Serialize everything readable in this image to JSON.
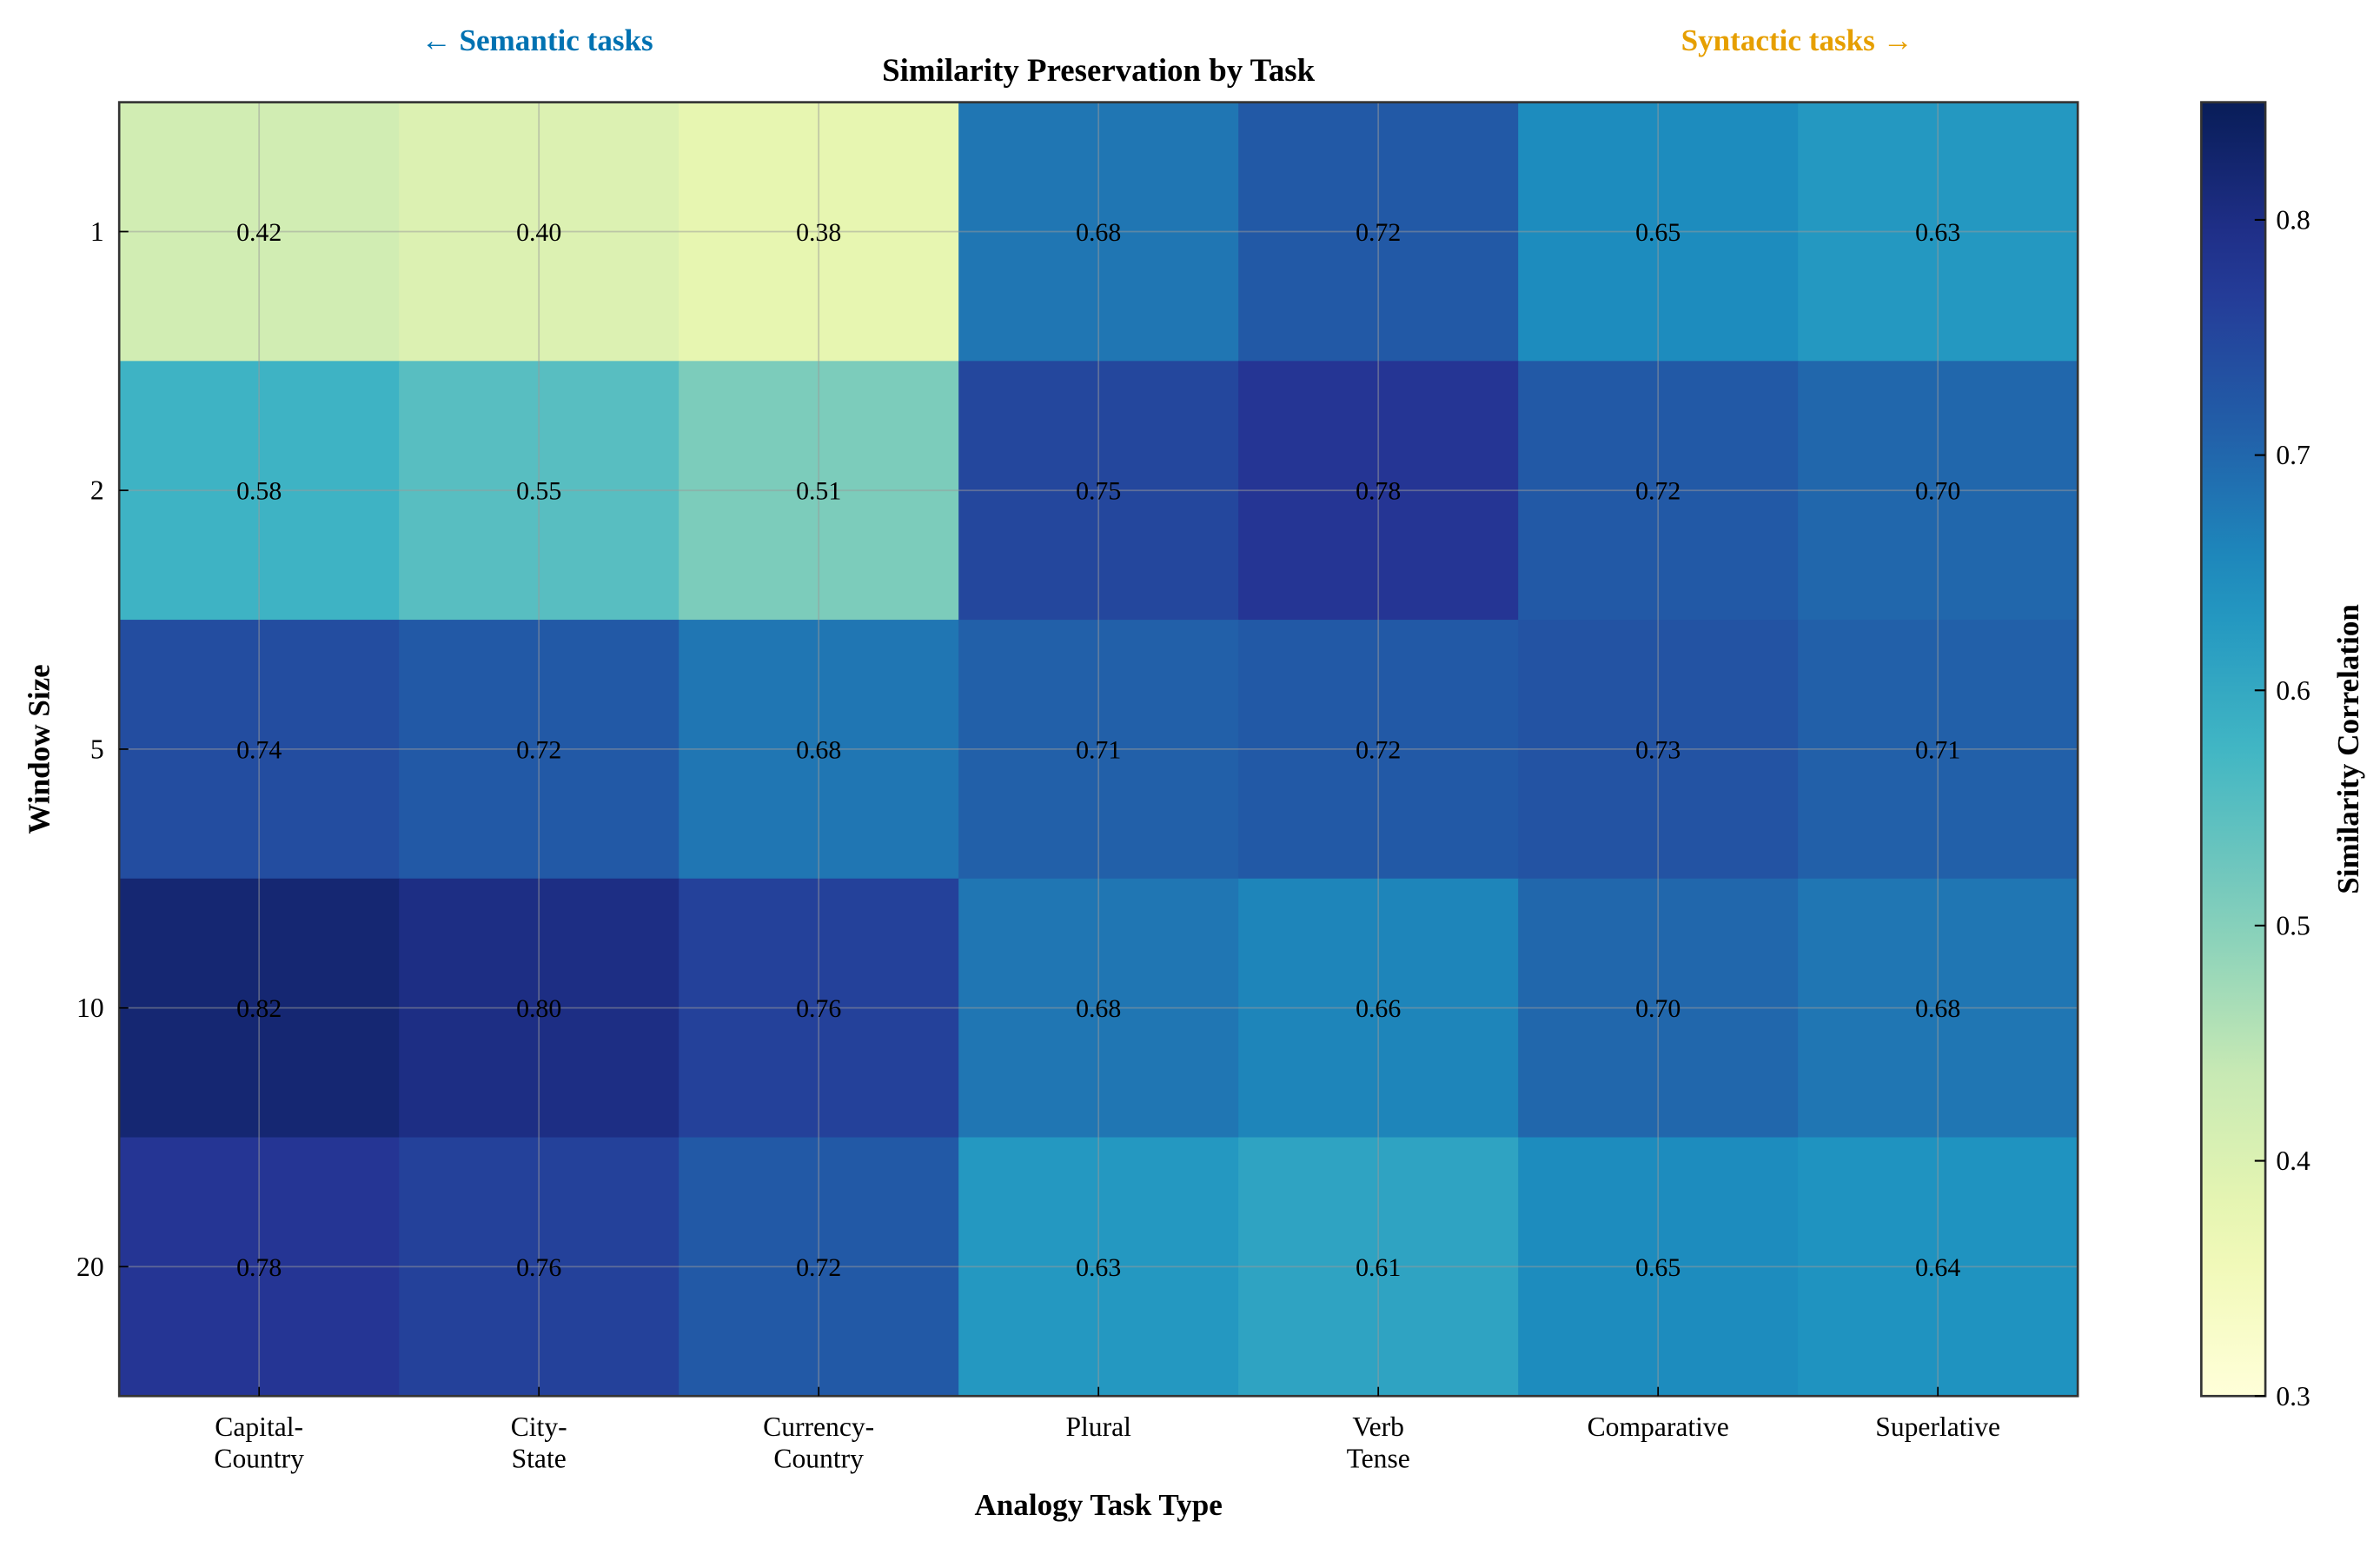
{
  "chart_data": {
    "type": "heatmap",
    "title": "Similarity Preservation by Task",
    "xlabel": "Analogy Task Type",
    "ylabel": "Window Size",
    "x_categories": [
      "Capital-\nCountry",
      "City-\nState",
      "Currency-\nCountry",
      "Plural",
      "Verb\nTense",
      "Comparative",
      "Superlative"
    ],
    "y_categories": [
      "1",
      "2",
      "5",
      "10",
      "20"
    ],
    "values": [
      [
        0.42,
        0.4,
        0.38,
        0.68,
        0.72,
        0.65,
        0.63
      ],
      [
        0.58,
        0.55,
        0.51,
        0.75,
        0.78,
        0.72,
        0.7
      ],
      [
        0.74,
        0.72,
        0.68,
        0.71,
        0.72,
        0.73,
        0.71
      ],
      [
        0.82,
        0.8,
        0.76,
        0.68,
        0.66,
        0.7,
        0.68
      ],
      [
        0.78,
        0.76,
        0.72,
        0.63,
        0.61,
        0.65,
        0.64
      ]
    ],
    "value_labels": [
      [
        "0.42",
        "0.40",
        "0.38",
        "0.68",
        "0.72",
        "0.65",
        "0.63"
      ],
      [
        "0.58",
        "0.55",
        "0.51",
        "0.75",
        "0.78",
        "0.72",
        "0.70"
      ],
      [
        "0.74",
        "0.72",
        "0.68",
        "0.71",
        "0.72",
        "0.73",
        "0.71"
      ],
      [
        "0.82",
        "0.80",
        "0.76",
        "0.68",
        "0.66",
        "0.70",
        "0.68"
      ],
      [
        "0.78",
        "0.76",
        "0.72",
        "0.63",
        "0.61",
        "0.65",
        "0.64"
      ]
    ],
    "colormap": "YlGnBu",
    "vmin": 0.3,
    "vmax": 0.85,
    "grid": true,
    "colorbar": {
      "label": "Similarity Correlation",
      "ticks": [
        "0.3",
        "0.4",
        "0.5",
        "0.6",
        "0.7",
        "0.8"
      ]
    },
    "annotations": [
      {
        "text": "← Semantic tasks",
        "color": "#0072b2"
      },
      {
        "text": "Syntactic tasks →",
        "color": "#e69f00"
      }
    ]
  }
}
